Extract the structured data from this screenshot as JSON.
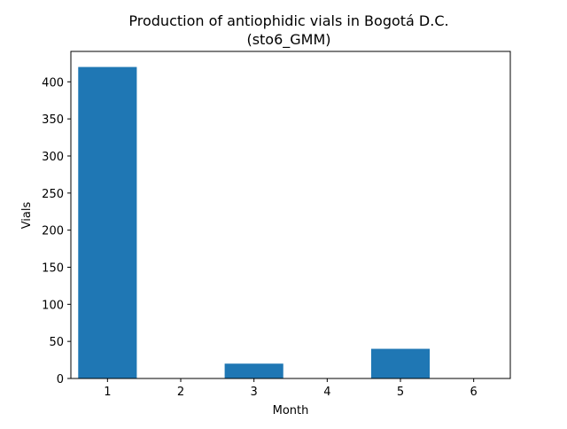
{
  "chart_data": {
    "type": "bar",
    "title_line1": "Production of antiophidic vials in Bogotá D.C.",
    "title_line2": "(sto6_GMM)",
    "xlabel": "Month",
    "ylabel": "Vials",
    "categories": [
      "1",
      "2",
      "3",
      "4",
      "5",
      "6"
    ],
    "x": [
      1,
      2,
      3,
      4,
      5,
      6
    ],
    "values": [
      420,
      0,
      20,
      0,
      40,
      0
    ],
    "xlim": [
      0.5,
      6.5
    ],
    "ylim": [
      0,
      441
    ],
    "yticks": [
      0,
      50,
      100,
      150,
      200,
      250,
      300,
      350,
      400
    ],
    "bar_color": "#1f77b4",
    "grid": false,
    "legend": false
  }
}
